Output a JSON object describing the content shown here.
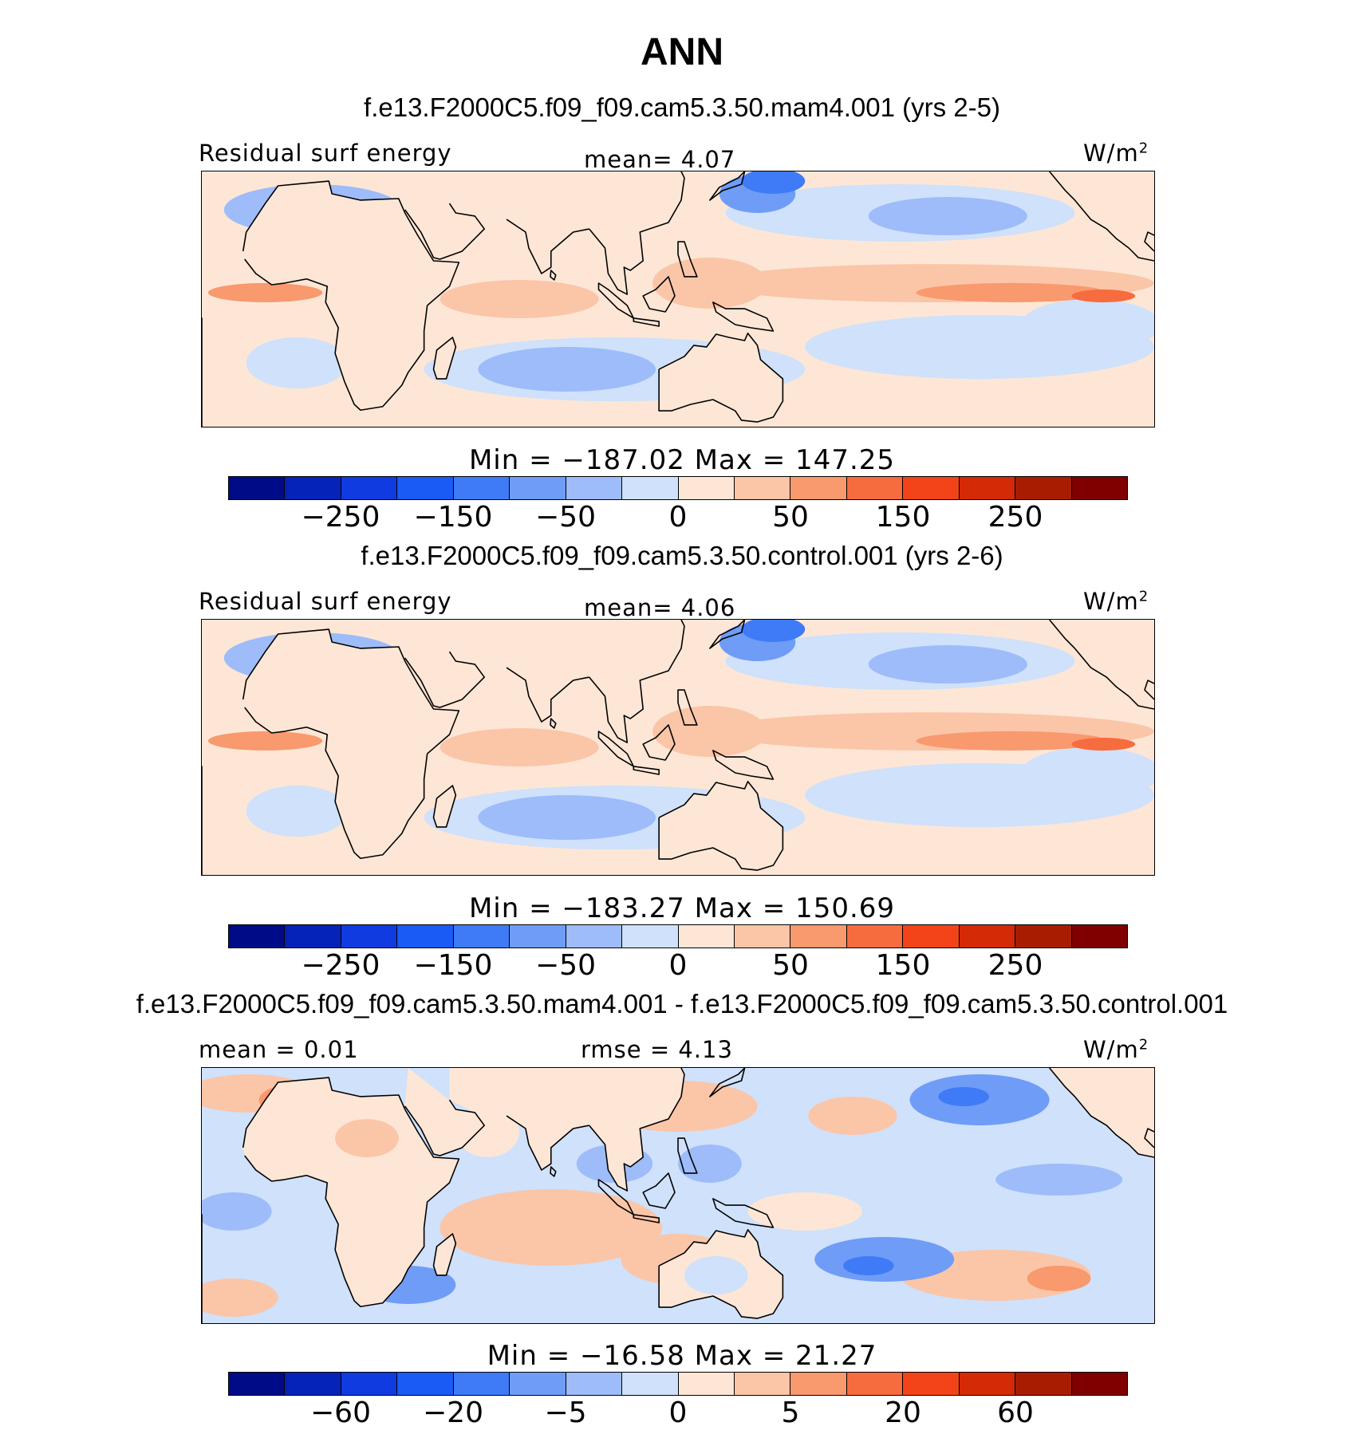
{
  "page_title": "ANN",
  "palette": [
    "#000c87",
    "#0523b8",
    "#0f3be0",
    "#1a5af5",
    "#3f7bf7",
    "#6f9cf7",
    "#9dbcf9",
    "#cfe1fb",
    "#fde6d6",
    "#fbc5a8",
    "#f8996e",
    "#f76c3e",
    "#f24418",
    "#d42a06",
    "#a81d02",
    "#800000"
  ],
  "chart_data": [
    {
      "type": "heatmap",
      "title": "f.e13.F2000C5.f09_f09.cam5.3.50.mam4.001 (yrs 2-5)",
      "left_label": "Residual surf energy",
      "center_label": "mean=    4.07",
      "units_base": "W/m",
      "units_exp": "2",
      "stat_line": "Min  =  −187.02  Max  =  147.25",
      "min": -187.02,
      "max": 147.25,
      "mean": 4.07,
      "levels": [
        -300,
        -250,
        -200,
        -150,
        -100,
        -50,
        -25,
        0,
        25,
        50,
        100,
        150,
        200,
        250,
        300
      ],
      "tick_labels": [
        "−250",
        "−150",
        "−50",
        "0",
        "50",
        "150",
        "250"
      ],
      "xlim": [
        -30,
        270
      ],
      "ylim": [
        -40,
        40
      ]
    },
    {
      "type": "heatmap",
      "title": "f.e13.F2000C5.f09_f09.cam5.3.50.control.001 (yrs 2-6)",
      "left_label": "Residual surf energy",
      "center_label": "mean=    4.06",
      "units_base": "W/m",
      "units_exp": "2",
      "stat_line": "Min  =  −183.27  Max  =  150.69",
      "min": -183.27,
      "max": 150.69,
      "mean": 4.06,
      "levels": [
        -300,
        -250,
        -200,
        -150,
        -100,
        -50,
        -25,
        0,
        25,
        50,
        100,
        150,
        200,
        250,
        300
      ],
      "tick_labels": [
        "−250",
        "−150",
        "−50",
        "0",
        "50",
        "150",
        "250"
      ],
      "xlim": [
        -30,
        270
      ],
      "ylim": [
        -40,
        40
      ]
    },
    {
      "type": "heatmap",
      "title": "f.e13.F2000C5.f09_f09.cam5.3.50.mam4.001 - f.e13.F2000C5.f09_f09.cam5.3.50.control.001",
      "left_label": "mean =    0.01",
      "center_label": "rmse =    4.13",
      "units_base": "W/m",
      "units_exp": "2",
      "stat_line": "Min  =  −16.58  Max  =   21.27",
      "min": -16.58,
      "max": 21.27,
      "mean": 0.01,
      "rmse": 4.13,
      "levels": [
        -80,
        -60,
        -40,
        -20,
        -10,
        -5,
        -2,
        0,
        2,
        5,
        10,
        20,
        40,
        60,
        80
      ],
      "tick_labels": [
        "−60",
        "−20",
        "−5",
        "0",
        "5",
        "20",
        "60"
      ],
      "xlim": [
        -30,
        270
      ],
      "ylim": [
        -40,
        40
      ]
    }
  ]
}
